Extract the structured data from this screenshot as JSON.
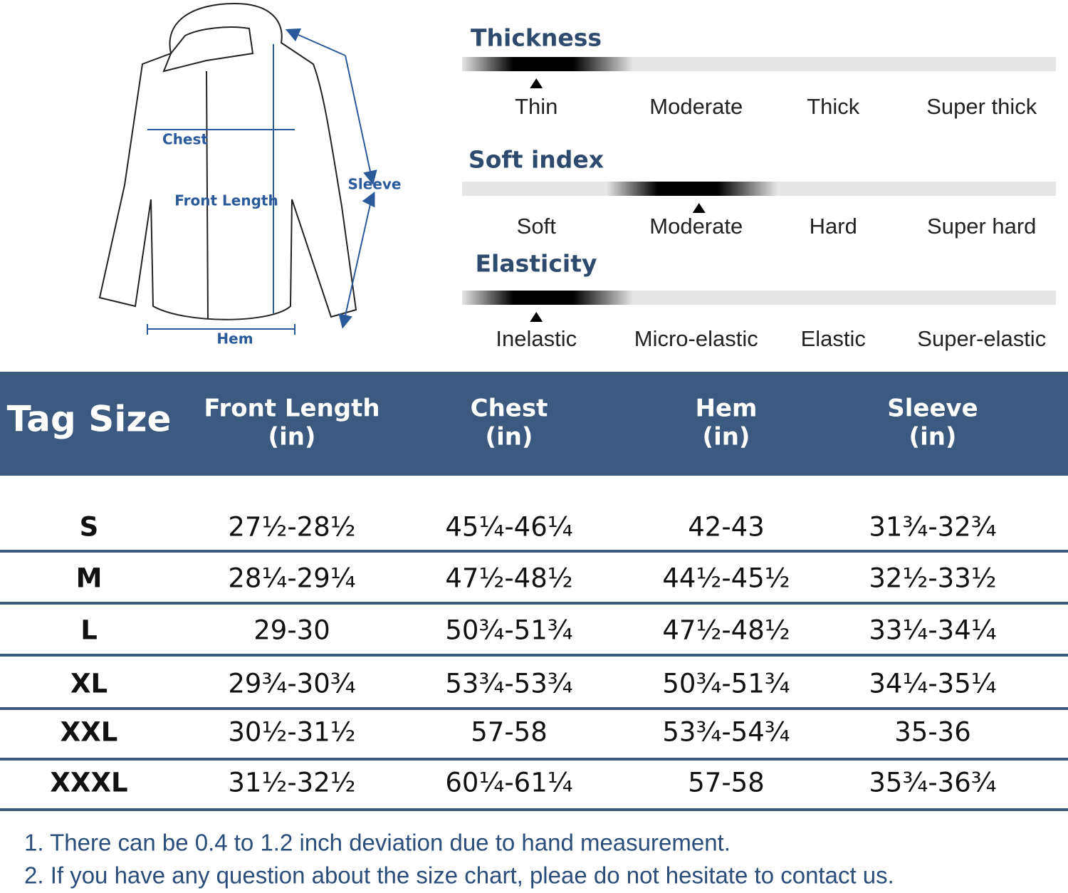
{
  "diagram": {
    "labels": [
      "Chest",
      "Front Length",
      "Sleeve",
      "Hem"
    ]
  },
  "scales": [
    {
      "title": "Thickness",
      "options": [
        "Thin",
        "Moderate",
        "Thick",
        "Super thick"
      ],
      "selected": 0
    },
    {
      "title": "Soft index",
      "options": [
        "Soft",
        "Moderate",
        "Hard",
        "Super hard"
      ],
      "selected": 1
    },
    {
      "title": "Elasticity",
      "options": [
        "Inelastic",
        "Micro-elastic",
        "Elastic",
        "Super-elastic"
      ],
      "selected": 0
    }
  ],
  "table": {
    "header": [
      [
        "Tag Size"
      ],
      [
        "Front Length",
        "(in)"
      ],
      [
        "Chest",
        "(in)"
      ],
      [
        "Hem",
        "(in)"
      ],
      [
        "Sleeve",
        "(in)"
      ]
    ],
    "rows": [
      [
        "S",
        "27½-28½",
        "45¼-46¼",
        "42-43",
        "31¾-32¾"
      ],
      [
        "M",
        "28¼-29¼",
        "47½-48½",
        "44½-45½",
        "32½-33½"
      ],
      [
        "L",
        "29-30",
        "50¾-51¾",
        "47½-48½",
        "33¼-34¼"
      ],
      [
        "XL",
        "29¾-30¾",
        "53¾-53¾",
        "50¾-51¾",
        "34¼-35¼"
      ],
      [
        "XXL",
        "30½-31½",
        "57-58",
        "53¾-54¾",
        "35-36"
      ],
      [
        "XXXL",
        "31½-32½",
        "60¼-61¼",
        "57-58",
        "35¾-36¾"
      ]
    ]
  },
  "notes": [
    "1. There can be 0.4 to 1.2 inch deviation due to hand measurement.",
    "2. If you have any question about the size chart, pleae do not hesitate to contact us."
  ]
}
